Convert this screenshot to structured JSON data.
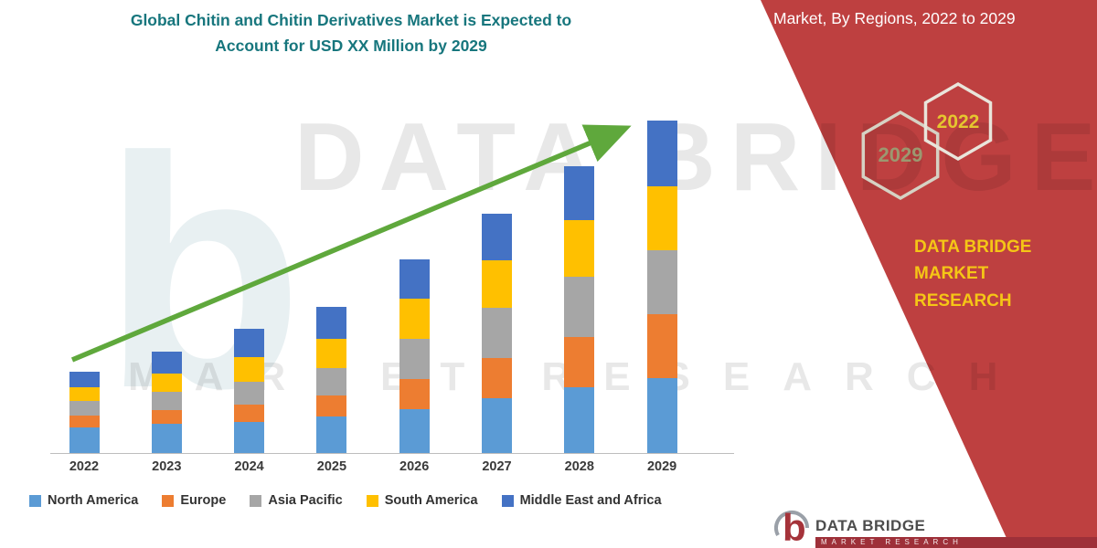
{
  "header": {
    "title_line1": "Global Chitin and Chitin Derivatives Market is Expected to",
    "title_line2": "Account for USD XX Million by 2029",
    "title_color": "#17767D"
  },
  "banner": {
    "background_color": "#BE4040",
    "title": "Market, By Regions, 2022 to 2029",
    "hexagons": [
      {
        "label": "2029",
        "text_color": "#9C9870",
        "outline_color": "#D6D2C4"
      },
      {
        "label": "2022",
        "text_color": "#E5C62F",
        "outline_color": "#E9E5DB"
      }
    ],
    "brand_line1": "DATA BRIDGE MARKET",
    "brand_line2": "RESEARCH",
    "brand_color": "#F5C616"
  },
  "chart_data": {
    "type": "bar",
    "stacked": true,
    "title": "Global Chitin and Chitin Derivatives Market is Expected to Account for USD XX Million by 2029",
    "categories": [
      "2022",
      "2023",
      "2024",
      "2025",
      "2026",
      "2027",
      "2028",
      "2029"
    ],
    "series": [
      {
        "name": "North America",
        "color": "#5B9BD5",
        "values": [
          28,
          32,
          34,
          40,
          48,
          60,
          72,
          82
        ]
      },
      {
        "name": "Europe",
        "color": "#ED7D31",
        "values": [
          13,
          15,
          19,
          23,
          33,
          44,
          55,
          70
        ]
      },
      {
        "name": "Asia Pacific",
        "color": "#A6A6A6",
        "values": [
          16,
          20,
          25,
          30,
          44,
          55,
          66,
          70
        ]
      },
      {
        "name": "South America",
        "color": "#FFC000",
        "values": [
          15,
          20,
          27,
          32,
          44,
          52,
          62,
          70
        ]
      },
      {
        "name": "Middle East and Africa",
        "color": "#4472C4",
        "values": [
          17,
          24,
          31,
          35,
          43,
          51,
          59,
          72
        ]
      }
    ],
    "xlabel": "",
    "ylabel": "",
    "y_axis_visible": false,
    "grid": false,
    "legend_position": "bottom",
    "trend_arrow": true,
    "trend_arrow_color": "#5FA83C",
    "value_units": "relative (values not labeled in source, USD XX Million)"
  },
  "watermark": {
    "text_large": "DATA BRIDGE",
    "text_spaced": "MARKET RESEARCH"
  },
  "footer_logo": {
    "name": "DATA BRIDGE",
    "sub": "MARKET RESEARCH",
    "bar_color": "#9E3039"
  }
}
